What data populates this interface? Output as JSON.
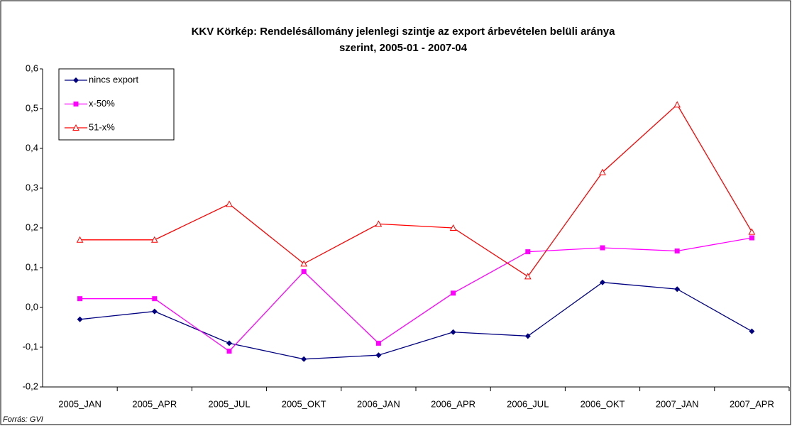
{
  "chart_data": {
    "type": "line",
    "title": [
      "KKV Körkép: Rendelésállomány jelenlegi szintje az export árbevételen belüli aránya",
      "szerint, 2005-01 - 2007-04"
    ],
    "source": "Forrás: GVI",
    "categories": [
      "2005_JAN",
      "2005_APR",
      "2005_JUL",
      "2005_OKT",
      "2006_JAN",
      "2006_APR",
      "2006_JUL",
      "2006_OKT",
      "2007_JAN",
      "2007_APR"
    ],
    "series": [
      {
        "name": "nincs export",
        "color": "#000080",
        "marker": "diamond",
        "values": [
          -0.03,
          -0.01,
          -0.09,
          -0.13,
          -0.12,
          -0.062,
          -0.072,
          0.063,
          0.046,
          -0.06
        ]
      },
      {
        "name": "x-50%",
        "color": "#ff00ff",
        "marker": "square",
        "values": [
          0.022,
          0.022,
          -0.11,
          0.09,
          -0.09,
          0.036,
          0.14,
          0.15,
          0.142,
          0.175
        ]
      },
      {
        "name": "51-x%",
        "color": "#ff0000",
        "marker": "triangle",
        "values": [
          0.17,
          0.17,
          0.26,
          0.11,
          0.21,
          0.2,
          0.078,
          0.34,
          0.51,
          0.19
        ]
      }
    ],
    "ylim": [
      -0.2,
      0.6
    ],
    "yticks": [
      {
        "value": -0.2,
        "label": "-0,2"
      },
      {
        "value": -0.1,
        "label": "-0,1"
      },
      {
        "value": 0,
        "label": "0,0"
      },
      {
        "value": 0.1,
        "label": "0,1"
      },
      {
        "value": 0.2,
        "label": "0,2"
      },
      {
        "value": 0.3,
        "label": "0,3"
      },
      {
        "value": 0.4,
        "label": "0,4"
      },
      {
        "value": 0.5,
        "label": "0,5"
      },
      {
        "value": 0.6,
        "label": "0,6"
      }
    ],
    "grid": false,
    "legend": "upper left"
  }
}
